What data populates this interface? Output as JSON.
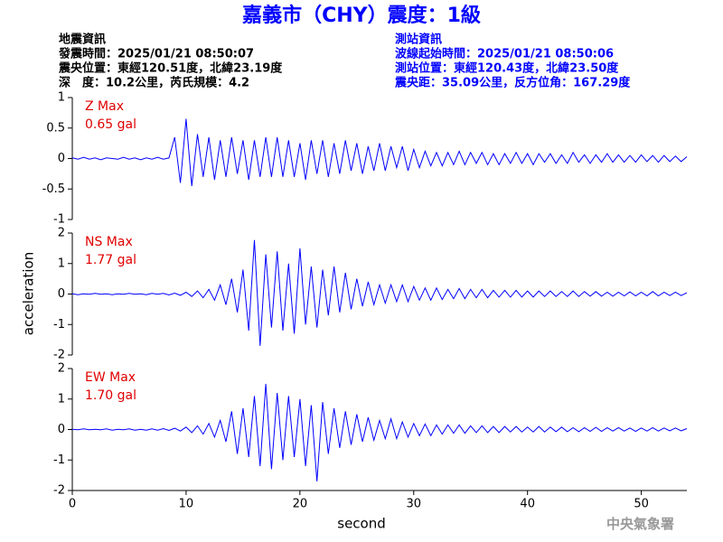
{
  "title": "嘉義市（CHY）震度：1級",
  "header": {
    "left": [
      "地震資訊",
      "發震時間：2025/01/21 08:50:07",
      "震央位置：東經120.51度，北緯23.19度",
      "深　度：10.2公里，芮氏規模：4.2"
    ],
    "right": [
      "測站資訊",
      "波線起始時間：2025/01/21 08:50:06",
      "測站位置：東經120.43度，北緯23.50度",
      "震央距：35.09公里，反方位角：167.29度"
    ]
  },
  "ylabel": "acceleration",
  "xlabel": "second",
  "footer": "中央氣象署",
  "chart_data": [
    {
      "type": "line",
      "label": "Z Max",
      "annotation": "0.65 gal",
      "color": "#0000ff",
      "xlim": [
        0,
        54
      ],
      "ylim": [
        -1,
        1
      ],
      "yticks": [
        -1,
        -0.5,
        0,
        0.5,
        1
      ],
      "x": [
        0,
        0.5,
        1,
        1.5,
        2,
        2.5,
        3,
        3.5,
        4,
        4.5,
        5,
        5.5,
        6,
        6.5,
        7,
        7.5,
        8,
        8.5,
        9,
        9.5,
        10,
        10.5,
        11,
        11.5,
        12,
        12.5,
        13,
        13.5,
        14,
        14.5,
        15,
        15.5,
        16,
        16.5,
        17,
        17.5,
        18,
        18.5,
        19,
        19.5,
        20,
        20.5,
        21,
        21.5,
        22,
        22.5,
        23,
        23.5,
        24,
        24.5,
        25,
        25.5,
        26,
        26.5,
        27,
        27.5,
        28,
        28.5,
        29,
        29.5,
        30,
        30.5,
        31,
        31.5,
        32,
        32.5,
        33,
        33.5,
        34,
        34.5,
        35,
        35.5,
        36,
        36.5,
        37,
        37.5,
        38,
        38.5,
        39,
        39.5,
        40,
        40.5,
        41,
        41.5,
        42,
        42.5,
        43,
        43.5,
        44,
        44.5,
        45,
        45.5,
        46,
        46.5,
        47,
        47.5,
        48,
        48.5,
        49,
        49.5,
        50,
        50.5,
        51,
        51.5,
        52,
        52.5,
        53,
        53.5,
        54
      ],
      "values": [
        0.01,
        -0.01,
        0.02,
        -0.01,
        0.01,
        -0.02,
        0.01,
        0,
        -0.01,
        0.02,
        -0.01,
        0.01,
        -0.02,
        0.01,
        -0.01,
        0.02,
        -0.01,
        0.01,
        0.35,
        -0.4,
        0.65,
        -0.45,
        0.4,
        -0.3,
        0.35,
        -0.35,
        0.3,
        -0.3,
        0.35,
        -0.25,
        0.3,
        -0.35,
        0.3,
        -0.3,
        0.35,
        -0.3,
        0.35,
        -0.3,
        0.3,
        -0.3,
        0.25,
        -0.35,
        0.3,
        -0.25,
        0.3,
        -0.3,
        0.25,
        -0.25,
        0.3,
        -0.2,
        0.25,
        -0.25,
        0.2,
        -0.2,
        0.25,
        -0.2,
        0.2,
        -0.15,
        0.2,
        -0.2,
        0.15,
        -0.15,
        0.12,
        -0.12,
        0.1,
        -0.12,
        0.1,
        -0.1,
        0.12,
        -0.1,
        0.1,
        -0.08,
        0.1,
        -0.1,
        0.08,
        -0.1,
        0.08,
        -0.08,
        0.1,
        -0.08,
        0.08,
        -0.1,
        0.08,
        -0.06,
        0.08,
        -0.08,
        0.06,
        -0.08,
        0.1,
        -0.06,
        0.06,
        -0.08,
        0.06,
        -0.06,
        0.08,
        -0.06,
        0.06,
        -0.06,
        0.05,
        -0.06,
        0.06,
        -0.05,
        0.05,
        -0.06,
        0.05,
        -0.05,
        0.04,
        -0.05,
        0.03
      ]
    },
    {
      "type": "line",
      "label": "NS Max",
      "annotation": "1.77 gal",
      "color": "#0000ff",
      "xlim": [
        0,
        54
      ],
      "ylim": [
        -2,
        2
      ],
      "yticks": [
        -2,
        -1,
        0,
        1,
        2
      ],
      "x": [
        0,
        0.5,
        1,
        1.5,
        2,
        2.5,
        3,
        3.5,
        4,
        4.5,
        5,
        5.5,
        6,
        6.5,
        7,
        7.5,
        8,
        8.5,
        9,
        9.5,
        10,
        10.5,
        11,
        11.5,
        12,
        12.5,
        13,
        13.5,
        14,
        14.5,
        15,
        15.5,
        16,
        16.5,
        17,
        17.5,
        18,
        18.5,
        19,
        19.5,
        20,
        20.5,
        21,
        21.5,
        22,
        22.5,
        23,
        23.5,
        24,
        24.5,
        25,
        25.5,
        26,
        26.5,
        27,
        27.5,
        28,
        28.5,
        29,
        29.5,
        30,
        30.5,
        31,
        31.5,
        32,
        32.5,
        33,
        33.5,
        34,
        34.5,
        35,
        35.5,
        36,
        36.5,
        37,
        37.5,
        38,
        38.5,
        39,
        39.5,
        40,
        40.5,
        41,
        41.5,
        42,
        42.5,
        43,
        43.5,
        44,
        44.5,
        45,
        45.5,
        46,
        46.5,
        47,
        47.5,
        48,
        48.5,
        49,
        49.5,
        50,
        50.5,
        51,
        51.5,
        52,
        52.5,
        53,
        53.5,
        54
      ],
      "values": [
        0.01,
        -0.02,
        0.01,
        -0.01,
        0.02,
        -0.01,
        0.01,
        -0.02,
        0.01,
        -0.01,
        0.02,
        -0.01,
        0.01,
        -0.02,
        0.02,
        -0.01,
        0.02,
        -0.03,
        0.03,
        -0.04,
        0.06,
        -0.08,
        0.1,
        -0.12,
        0.15,
        -0.2,
        0.3,
        -0.35,
        0.5,
        -0.6,
        0.8,
        -1.2,
        1.77,
        -1.7,
        1.3,
        -1.1,
        1.4,
        -1.2,
        1.0,
        -1.3,
        1.5,
        -1.0,
        0.9,
        -1.1,
        0.8,
        -0.7,
        0.9,
        -0.6,
        0.7,
        -0.5,
        0.5,
        -0.4,
        0.4,
        -0.35,
        0.3,
        -0.3,
        0.3,
        -0.25,
        0.3,
        -0.25,
        0.25,
        -0.2,
        0.2,
        -0.2,
        0.2,
        -0.18,
        0.15,
        -0.15,
        0.18,
        -0.15,
        0.15,
        -0.12,
        0.15,
        -0.12,
        0.12,
        -0.1,
        0.12,
        -0.1,
        0.12,
        -0.1,
        0.1,
        -0.1,
        0.1,
        -0.08,
        0.1,
        -0.08,
        0.08,
        -0.08,
        0.1,
        -0.08,
        0.08,
        -0.07,
        0.08,
        -0.07,
        0.06,
        -0.07,
        0.06,
        -0.06,
        0.07,
        -0.06,
        0.06,
        -0.06,
        0.08,
        -0.06,
        0.06,
        -0.05,
        0.06,
        -0.05,
        0.04
      ]
    },
    {
      "type": "line",
      "label": "EW Max",
      "annotation": "1.70 gal",
      "color": "#0000ff",
      "xlim": [
        0,
        54
      ],
      "ylim": [
        -2,
        2
      ],
      "yticks": [
        -2,
        -1,
        0,
        1,
        2
      ],
      "xticks": [
        0,
        10,
        20,
        30,
        40,
        50
      ],
      "x": [
        0,
        0.5,
        1,
        1.5,
        2,
        2.5,
        3,
        3.5,
        4,
        4.5,
        5,
        5.5,
        6,
        6.5,
        7,
        7.5,
        8,
        8.5,
        9,
        9.5,
        10,
        10.5,
        11,
        11.5,
        12,
        12.5,
        13,
        13.5,
        14,
        14.5,
        15,
        15.5,
        16,
        16.5,
        17,
        17.5,
        18,
        18.5,
        19,
        19.5,
        20,
        20.5,
        21,
        21.5,
        22,
        22.5,
        23,
        23.5,
        24,
        24.5,
        25,
        25.5,
        26,
        26.5,
        27,
        27.5,
        28,
        28.5,
        29,
        29.5,
        30,
        30.5,
        31,
        31.5,
        32,
        32.5,
        33,
        33.5,
        34,
        34.5,
        35,
        35.5,
        36,
        36.5,
        37,
        37.5,
        38,
        38.5,
        39,
        39.5,
        40,
        40.5,
        41,
        41.5,
        42,
        42.5,
        43,
        43.5,
        44,
        44.5,
        45,
        45.5,
        46,
        46.5,
        47,
        47.5,
        48,
        48.5,
        49,
        49.5,
        50,
        50.5,
        51,
        51.5,
        52,
        52.5,
        53,
        53.5,
        54
      ],
      "values": [
        0.01,
        -0.01,
        0.02,
        -0.01,
        0.01,
        -0.01,
        0.02,
        -0.02,
        0.01,
        -0.01,
        0.02,
        -0.02,
        0.01,
        -0.02,
        0.02,
        -0.02,
        0.03,
        -0.03,
        0.04,
        -0.05,
        0.08,
        -0.1,
        0.12,
        -0.15,
        0.2,
        -0.25,
        0.3,
        -0.4,
        0.6,
        -0.8,
        0.7,
        -0.9,
        1.1,
        -1.2,
        1.5,
        -1.3,
        1.2,
        -1.0,
        1.1,
        -0.9,
        1.0,
        -1.2,
        0.8,
        -1.7,
        0.9,
        -0.8,
        0.7,
        -0.6,
        0.6,
        -0.5,
        0.5,
        -0.4,
        0.4,
        -0.35,
        0.3,
        -0.3,
        0.35,
        -0.3,
        0.25,
        -0.25,
        0.2,
        -0.2,
        0.18,
        -0.2,
        0.15,
        -0.15,
        0.15,
        -0.12,
        0.15,
        -0.12,
        0.12,
        -0.1,
        0.12,
        -0.1,
        0.1,
        -0.1,
        0.1,
        -0.08,
        0.1,
        -0.08,
        0.08,
        -0.08,
        0.1,
        -0.08,
        0.08,
        -0.07,
        0.08,
        -0.07,
        0.06,
        -0.07,
        0.06,
        -0.06,
        0.07,
        -0.06,
        0.06,
        -0.05,
        0.06,
        -0.05,
        0.05,
        -0.06,
        0.05,
        -0.05,
        0.06,
        -0.05,
        0.05,
        -0.04,
        0.05,
        -0.04,
        0.03
      ]
    }
  ]
}
